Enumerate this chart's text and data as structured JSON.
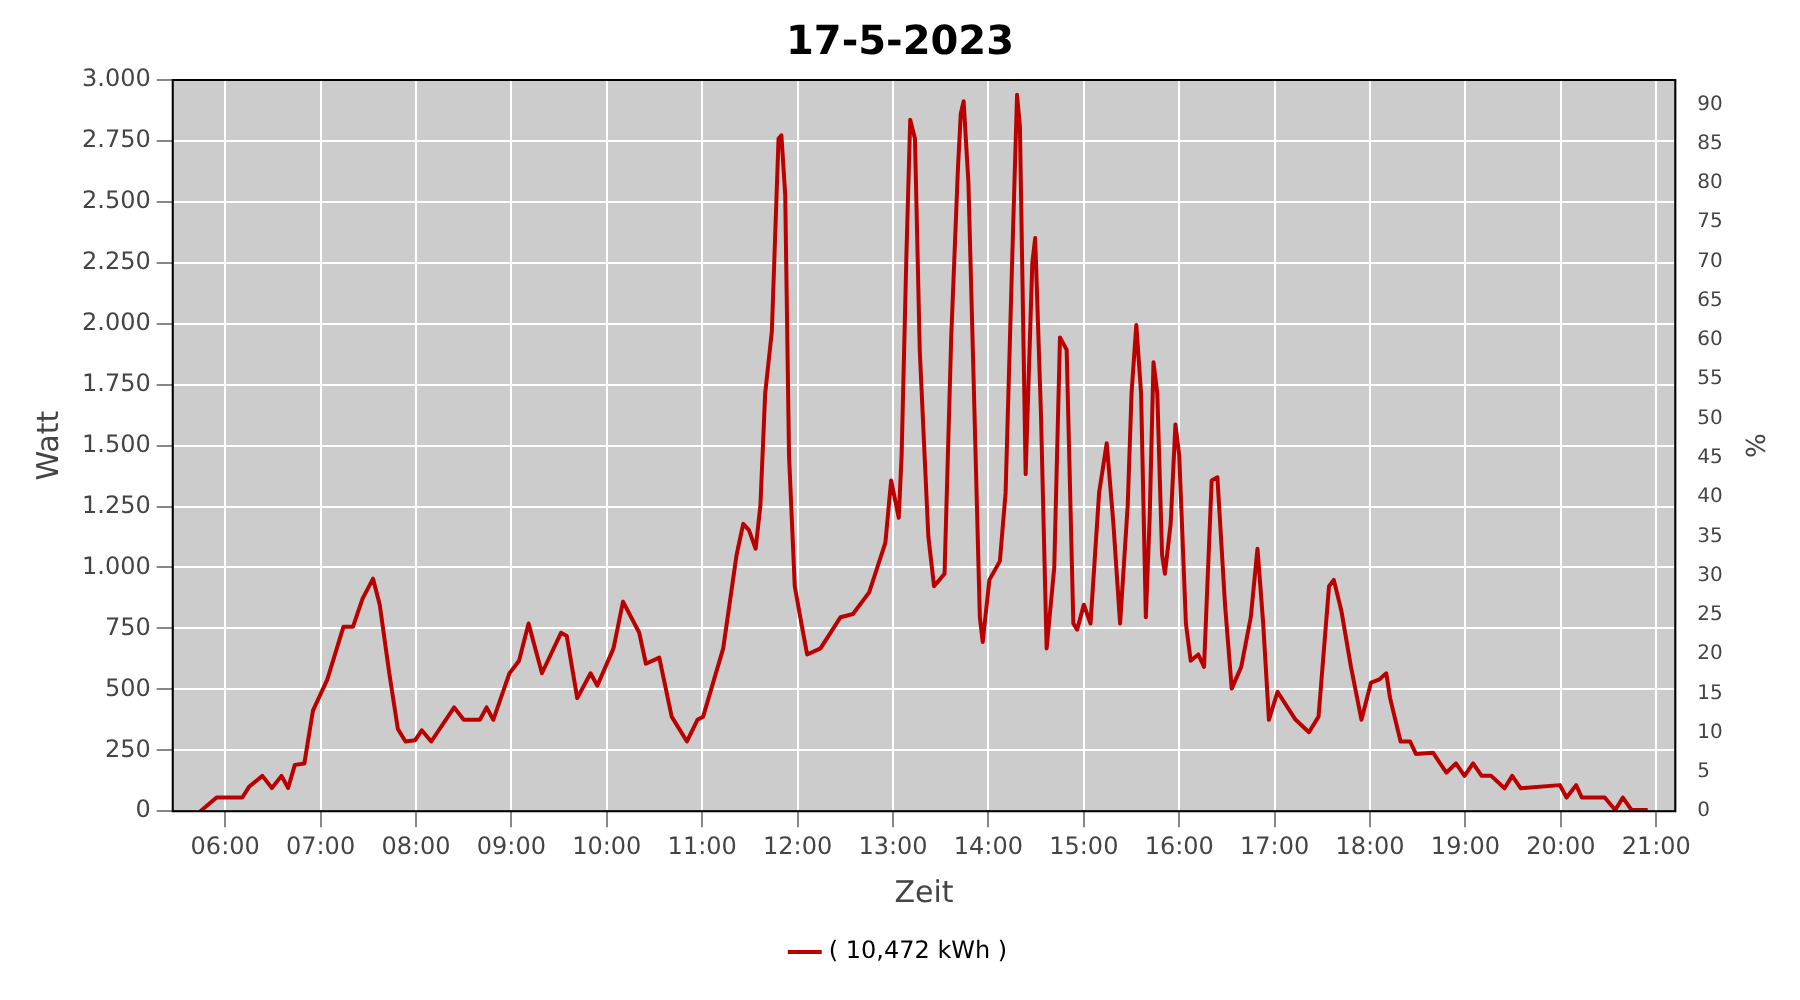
{
  "chart_data": {
    "type": "line",
    "title": "17-5-2023",
    "xlabel": "Zeit",
    "ylabel": "Watt",
    "y2label": "%",
    "xlim": [
      5.45,
      21.2
    ],
    "xticks": [
      {
        "value": 6,
        "label": "06:00"
      },
      {
        "value": 7,
        "label": "07:00"
      },
      {
        "value": 8,
        "label": "08:00"
      },
      {
        "value": 9,
        "label": "09:00"
      },
      {
        "value": 10,
        "label": "10:00"
      },
      {
        "value": 11,
        "label": "11:00"
      },
      {
        "value": 12,
        "label": "12:00"
      },
      {
        "value": 13,
        "label": "13:00"
      },
      {
        "value": 14,
        "label": "14:00"
      },
      {
        "value": 15,
        "label": "15:00"
      },
      {
        "value": 16,
        "label": "16:00"
      },
      {
        "value": 17,
        "label": "17:00"
      },
      {
        "value": 18,
        "label": "18:00"
      },
      {
        "value": 19,
        "label": "19:00"
      },
      {
        "value": 20,
        "label": "20:00"
      },
      {
        "value": 21,
        "label": "21:00"
      }
    ],
    "ylim": [
      0,
      3000
    ],
    "yticks": [
      0,
      250,
      500,
      750,
      {
        "value": 1000,
        "label": "1.000"
      },
      {
        "value": 1250,
        "label": "1.250"
      },
      {
        "value": 1500,
        "label": "1.500"
      },
      {
        "value": 1750,
        "label": "1.750"
      },
      {
        "value": 2000,
        "label": "2.000"
      },
      {
        "value": 2250,
        "label": "2.250"
      },
      {
        "value": 2500,
        "label": "2.500"
      },
      {
        "value": 2750,
        "label": "2.750"
      },
      {
        "value": 3000,
        "label": "3.000"
      }
    ],
    "y2lim": [
      0,
      93.1
    ],
    "y2ticks": [
      0,
      5,
      10,
      15,
      20,
      25,
      30,
      35,
      40,
      45,
      50,
      55,
      60,
      65,
      70,
      75,
      80,
      85,
      90
    ],
    "grid": true,
    "legend": "bottom",
    "marker": "none",
    "line_style": "solid",
    "series": [
      {
        "name": "( 10,472 kWh )",
        "color": "#bb0000",
        "x": [
          5.74,
          5.91,
          6.18,
          6.25,
          6.39,
          6.49,
          6.59,
          6.66,
          6.73,
          6.83,
          6.92,
          7.07,
          7.24,
          7.34,
          7.44,
          7.55,
          7.62,
          7.72,
          7.81,
          7.89,
          7.99,
          8.06,
          8.16,
          8.4,
          8.5,
          8.67,
          8.74,
          8.81,
          8.98,
          9.08,
          9.18,
          9.32,
          9.52,
          9.58,
          9.69,
          9.83,
          9.9,
          10.07,
          10.17,
          10.34,
          10.41,
          10.55,
          10.68,
          10.84,
          10.95,
          11.01,
          11.22,
          11.36,
          11.43,
          11.49,
          11.56,
          11.61,
          11.66,
          11.73,
          11.8,
          11.83,
          11.87,
          11.91,
          11.97,
          12.04,
          12.1,
          12.24,
          12.45,
          12.58,
          12.75,
          12.92,
          12.98,
          13.06,
          13.09,
          13.14,
          13.18,
          13.23,
          13.28,
          13.37,
          13.43,
          13.54,
          13.61,
          13.68,
          13.71,
          13.74,
          13.79,
          13.84,
          13.91,
          13.94,
          14.01,
          14.12,
          14.18,
          14.25,
          14.3,
          14.33,
          14.39,
          14.46,
          14.49,
          14.55,
          14.61,
          14.69,
          14.75,
          14.82,
          14.89,
          14.93,
          15,
          15.07,
          15.16,
          15.24,
          15.31,
          15.38,
          15.46,
          15.5,
          15.55,
          15.6,
          15.65,
          15.69,
          15.73,
          15.77,
          15.82,
          15.85,
          15.91,
          15.96,
          16,
          16.07,
          16.12,
          16.2,
          16.26,
          16.34,
          16.4,
          16.48,
          16.55,
          16.65,
          16.75,
          16.82,
          16.88,
          16.94,
          17.03,
          17.22,
          17.36,
          17.46,
          17.57,
          17.62,
          17.7,
          17.8,
          17.91,
          18.01,
          18.1,
          18.17,
          18.21,
          18.32,
          18.42,
          18.48,
          18.66,
          18.8,
          18.9,
          18.99,
          19.08,
          19.17,
          19.27,
          19.41,
          19.49,
          19.58,
          19.99,
          20.06,
          20.16,
          20.22,
          20.46,
          20.57,
          20.65,
          20.74,
          20.91
        ],
        "values": [
          0,
          56,
          56,
          100,
          145,
          95,
          145,
          95,
          190,
          196,
          413,
          540,
          757,
          757,
          872,
          954,
          847,
          566,
          337,
          286,
          291,
          332,
          286,
          426,
          375,
          375,
          426,
          375,
          566,
          617,
          770,
          566,
          732,
          719,
          464,
          566,
          515,
          668,
          860,
          732,
          605,
          630,
          388,
          286,
          375,
          388,
          668,
          1051,
          1179,
          1153,
          1077,
          1255,
          1714,
          1969,
          2760,
          2773,
          2531,
          1459,
          923,
          770,
          643,
          668,
          796,
          809,
          898,
          1102,
          1357,
          1204,
          1459,
          2276,
          2837,
          2760,
          1893,
          1128,
          923,
          974,
          1944,
          2633,
          2862,
          2913,
          2582,
          1842,
          796,
          694,
          949,
          1026,
          1306,
          2276,
          2939,
          2811,
          1383,
          2250,
          2352,
          1638,
          668,
          1000,
          1944,
          1893,
          770,
          745,
          847,
          770,
          1306,
          1510,
          1179,
          770,
          1255,
          1714,
          1995,
          1714,
          796,
          1204,
          1842,
          1714,
          1051,
          974,
          1179,
          1587,
          1459,
          770,
          617,
          643,
          592,
          1357,
          1370,
          847,
          503,
          592,
          796,
          1077,
          770,
          375,
          490,
          375,
          324,
          388,
          923,
          949,
          821,
          592,
          375,
          528,
          541,
          566,
          464,
          286,
          286,
          235,
          240,
          158,
          196,
          145,
          196,
          145,
          145,
          94,
          145,
          94,
          107,
          56,
          107,
          56,
          56,
          5,
          56,
          5,
          5
        ]
      }
    ]
  }
}
